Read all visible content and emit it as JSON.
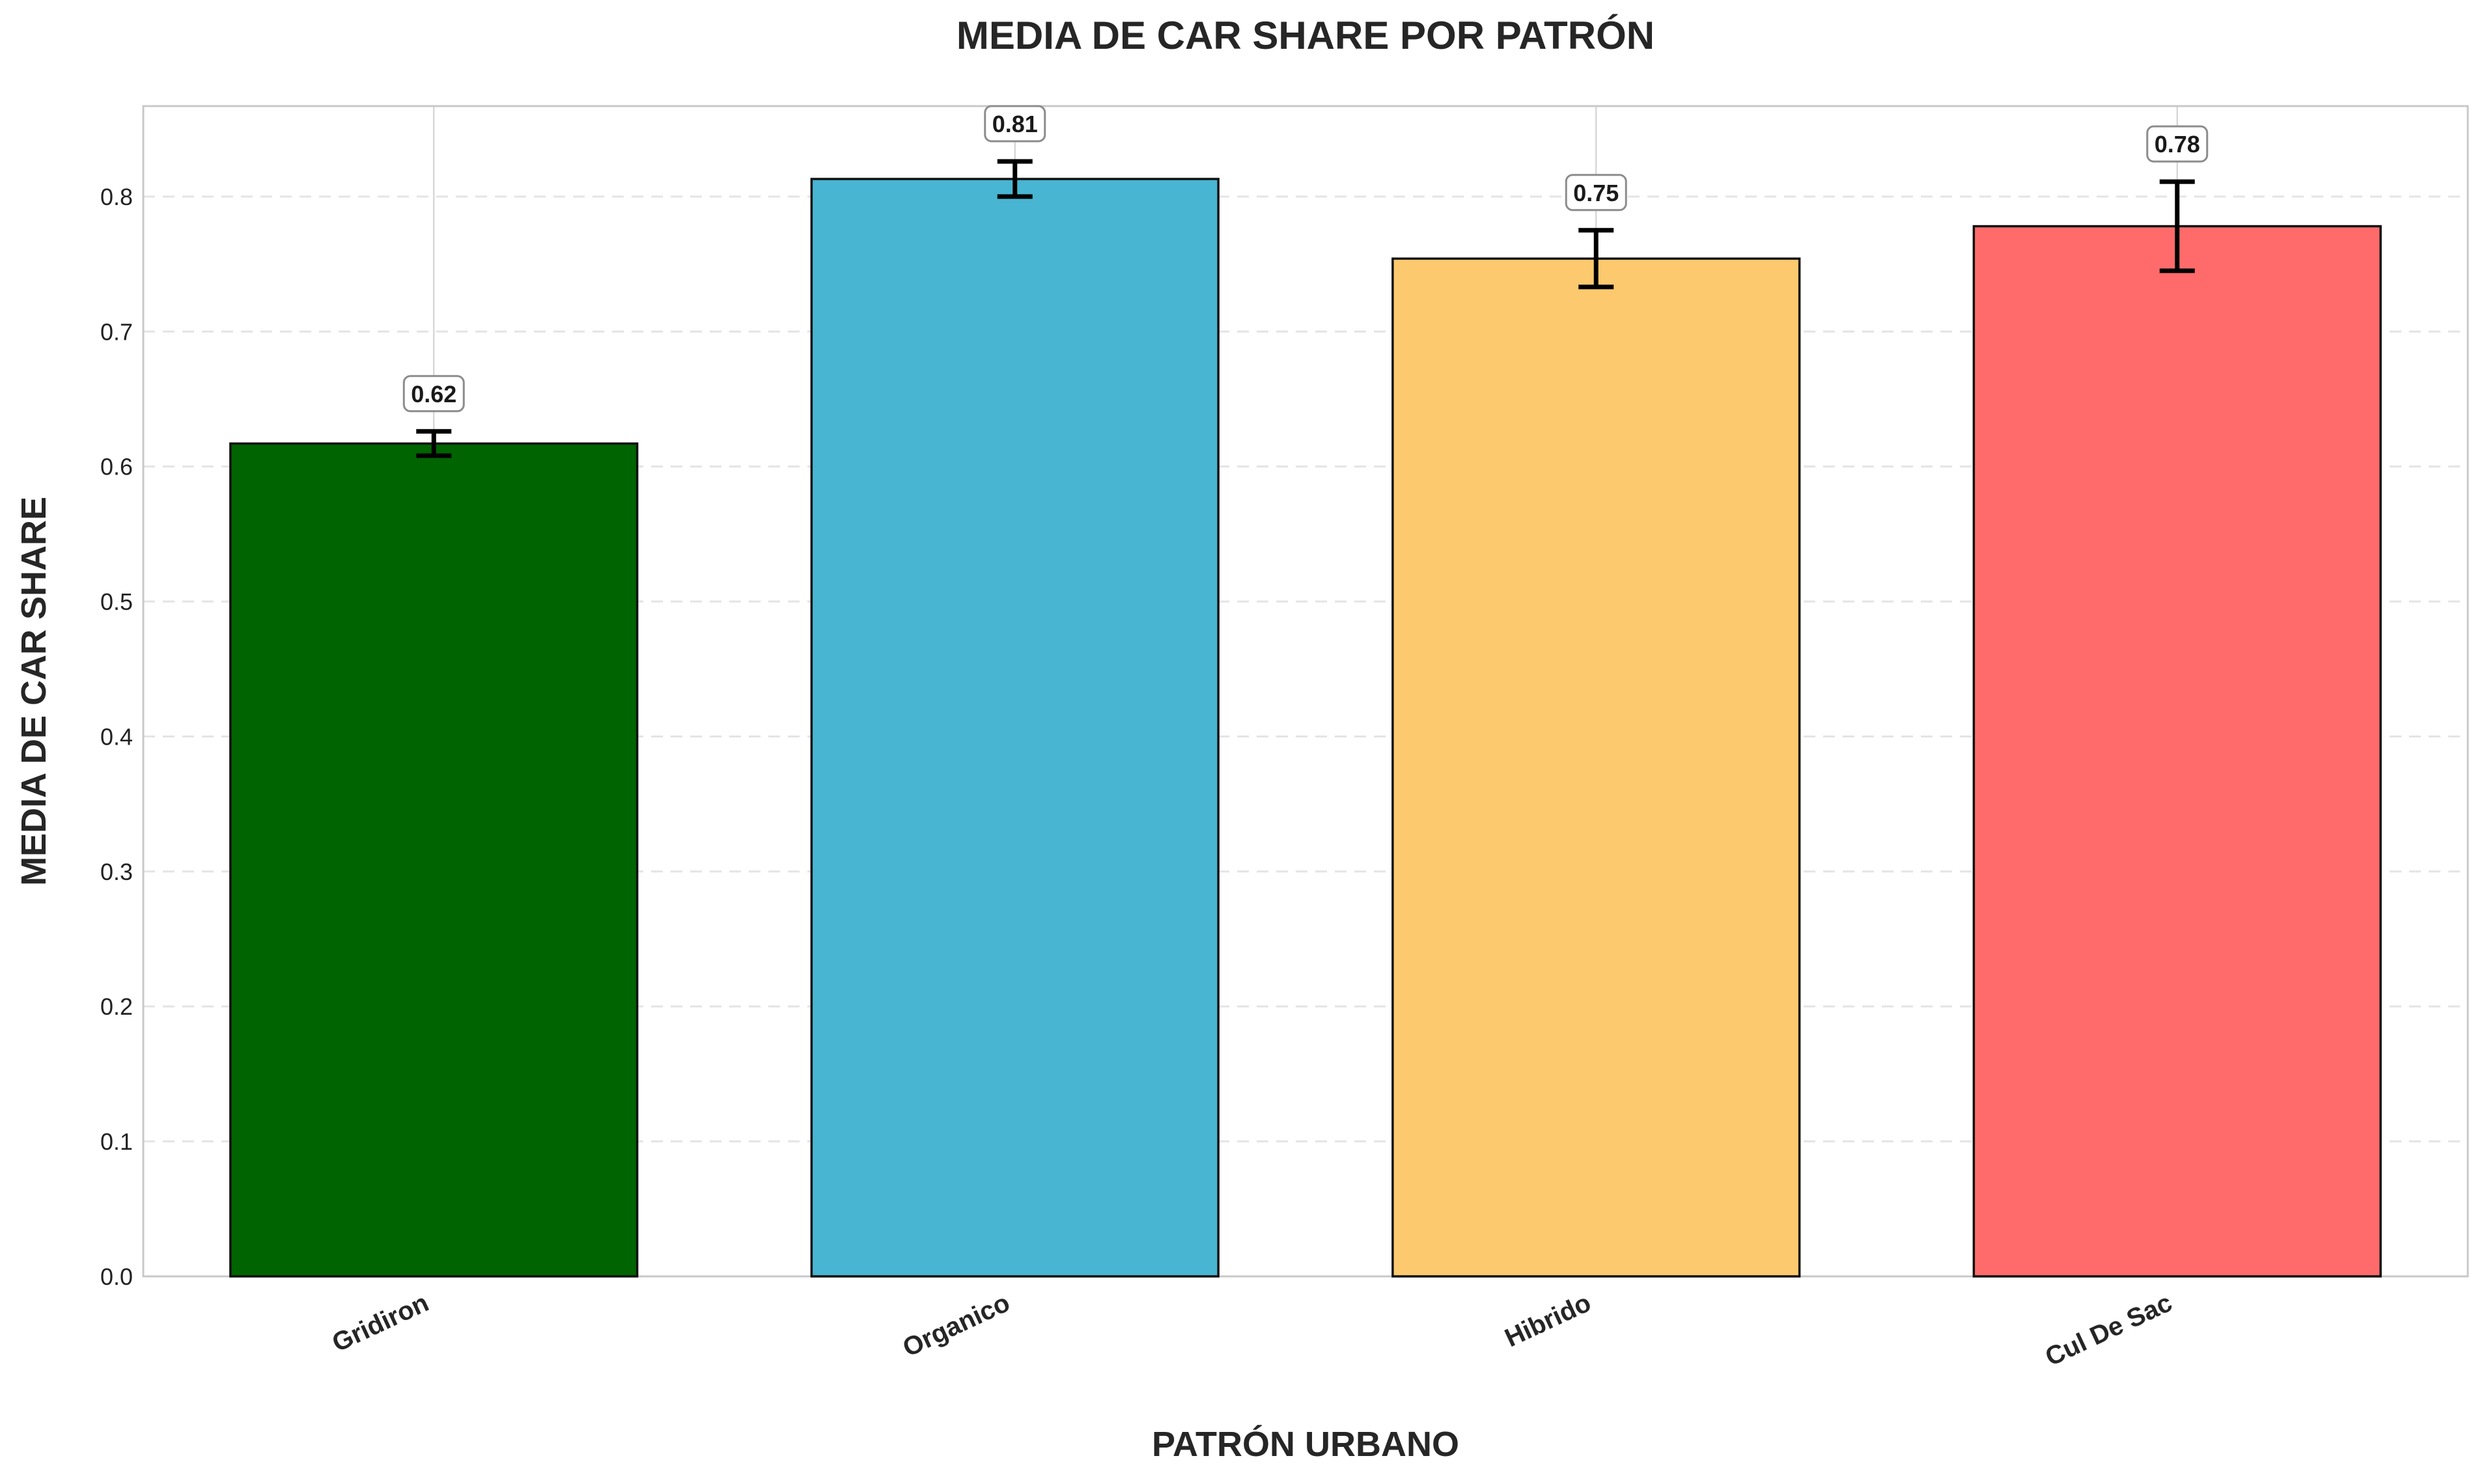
{
  "chart_data": {
    "type": "bar",
    "title": "MEDIA DE CAR SHARE POR PATRÓN",
    "xlabel": "PATRÓN URBANO",
    "ylabel": "MEDIA DE CAR SHARE",
    "categories": [
      "Gridiron",
      "Organico",
      "Hibrido",
      "Cul De Sac"
    ],
    "values": [
      0.617,
      0.813,
      0.754,
      0.778
    ],
    "errors": [
      0.009,
      0.013,
      0.021,
      0.033
    ],
    "value_labels": [
      "0.62",
      "0.81",
      "0.75",
      "0.78"
    ],
    "colors": [
      "#006400",
      "#48B5D2",
      "#FCC96E",
      "#FF6B6B"
    ],
    "ylim": [
      0,
      0.867
    ],
    "yticks": [
      0.0,
      0.1,
      0.2,
      0.3,
      0.4,
      0.5,
      0.6,
      0.7,
      0.8
    ],
    "ytick_labels": [
      "0.0",
      "0.1",
      "0.2",
      "0.3",
      "0.4",
      "0.5",
      "0.6",
      "0.7",
      "0.8"
    ],
    "grid": true,
    "legend": "none"
  }
}
